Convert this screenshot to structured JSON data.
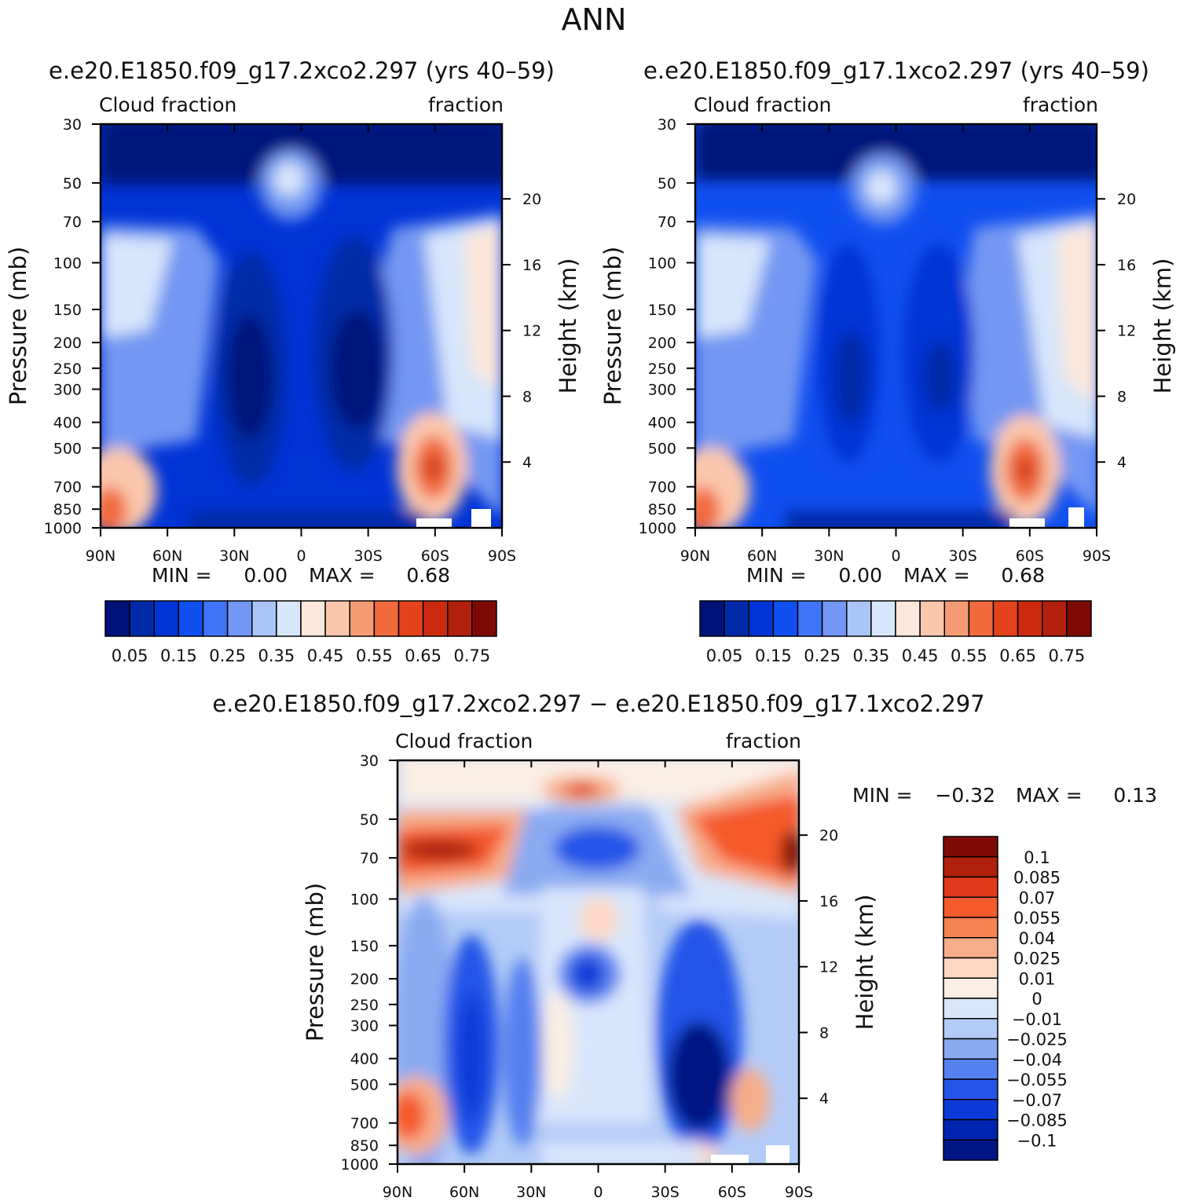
{
  "page_title": "ANN",
  "colors": {
    "abs_scale": [
      "#00127a",
      "#002aa8",
      "#0034d6",
      "#0f4ff0",
      "#3e74f5",
      "#7397f2",
      "#a9c4f7",
      "#d6e6fb",
      "#fde7da",
      "#fbc7ac",
      "#f59b74",
      "#f06a3e",
      "#e4421c",
      "#cc2a0f",
      "#b0200c",
      "#7f0a05"
    ],
    "diff_scale": [
      "#7f0a05",
      "#b0200c",
      "#e0391b",
      "#f55a2c",
      "#f58352",
      "#f7ad8a",
      "#fdd8c4",
      "#fbeee4",
      "#d8e6fb",
      "#b3cbf7",
      "#8aaaf2",
      "#5580f0",
      "#2455e8",
      "#0c3ad8",
      "#0024b0",
      "#001685"
    ]
  },
  "chart_data": [
    {
      "type": "heatmap",
      "title": "e.e20.E1850.f09_g17.2xco2.297 (yrs 40–59)",
      "left_label": "Cloud fraction",
      "right_label": "fraction",
      "xlabel": "",
      "ylabel": "Pressure (mb)",
      "y2label": "Height (km)",
      "x_ticks": [
        "90N",
        "60N",
        "30N",
        "0",
        "30S",
        "60S",
        "90S"
      ],
      "y_ticks": [
        30,
        50,
        70,
        100,
        150,
        200,
        250,
        300,
        400,
        500,
        700,
        850,
        1000
      ],
      "y_tick_labels": [
        "30",
        "50",
        "70",
        "100",
        "150",
        "200",
        "250",
        "300",
        "400",
        "500",
        "700",
        "850",
        "1000"
      ],
      "y2_ticks": [
        20,
        16,
        12,
        8,
        4
      ],
      "ylim": [
        1000,
        30
      ],
      "min_label": "MIN =",
      "min_value": "0.00",
      "max_label": "MAX =",
      "max_value": "0.68",
      "colorbar_labels": [
        "0.05",
        "0.15",
        "0.25",
        "0.35",
        "0.45",
        "0.55",
        "0.65",
        "0.75"
      ]
    },
    {
      "type": "heatmap",
      "title": "e.e20.E1850.f09_g17.1xco2.297 (yrs 40–59)",
      "left_label": "Cloud fraction",
      "right_label": "fraction",
      "xlabel": "",
      "ylabel": "Pressure (mb)",
      "y2label": "Height (km)",
      "x_ticks": [
        "90N",
        "60N",
        "30N",
        "0",
        "30S",
        "60S",
        "90S"
      ],
      "y_ticks": [
        30,
        50,
        70,
        100,
        150,
        200,
        250,
        300,
        400,
        500,
        700,
        850,
        1000
      ],
      "y_tick_labels": [
        "30",
        "50",
        "70",
        "100",
        "150",
        "200",
        "250",
        "300",
        "400",
        "500",
        "700",
        "850",
        "1000"
      ],
      "y2_ticks": [
        20,
        16,
        12,
        8,
        4
      ],
      "ylim": [
        1000,
        30
      ],
      "min_label": "MIN =",
      "min_value": "0.00",
      "max_label": "MAX =",
      "max_value": "0.68",
      "colorbar_labels": [
        "0.05",
        "0.15",
        "0.25",
        "0.35",
        "0.45",
        "0.55",
        "0.65",
        "0.75"
      ]
    },
    {
      "type": "heatmap",
      "title": "e.e20.E1850.f09_g17.2xco2.297 − e.e20.E1850.f09_g17.1xco2.297",
      "left_label": "Cloud fraction",
      "right_label": "fraction",
      "xlabel": "",
      "ylabel": "Pressure (mb)",
      "y2label": "Height (km)",
      "x_ticks": [
        "90N",
        "60N",
        "30N",
        "0",
        "30S",
        "60S",
        "90S"
      ],
      "y_ticks": [
        30,
        50,
        70,
        100,
        150,
        200,
        250,
        300,
        400,
        500,
        700,
        850,
        1000
      ],
      "y_tick_labels": [
        "30",
        "50",
        "70",
        "100",
        "150",
        "200",
        "250",
        "300",
        "400",
        "500",
        "700",
        "850",
        "1000"
      ],
      "y2_ticks": [
        20,
        16,
        12,
        8,
        4
      ],
      "ylim": [
        1000,
        30
      ],
      "min_label": "MIN =",
      "min_value": "−0.32",
      "max_label": "MAX =",
      "max_value": "0.13",
      "colorbar_labels": [
        "0.1",
        "0.085",
        "0.07",
        "0.055",
        "0.04",
        "0.025",
        "0.01",
        "0",
        "−0.01",
        "−0.025",
        "−0.04",
        "−0.055",
        "−0.07",
        "−0.085",
        "−0.1"
      ]
    }
  ]
}
